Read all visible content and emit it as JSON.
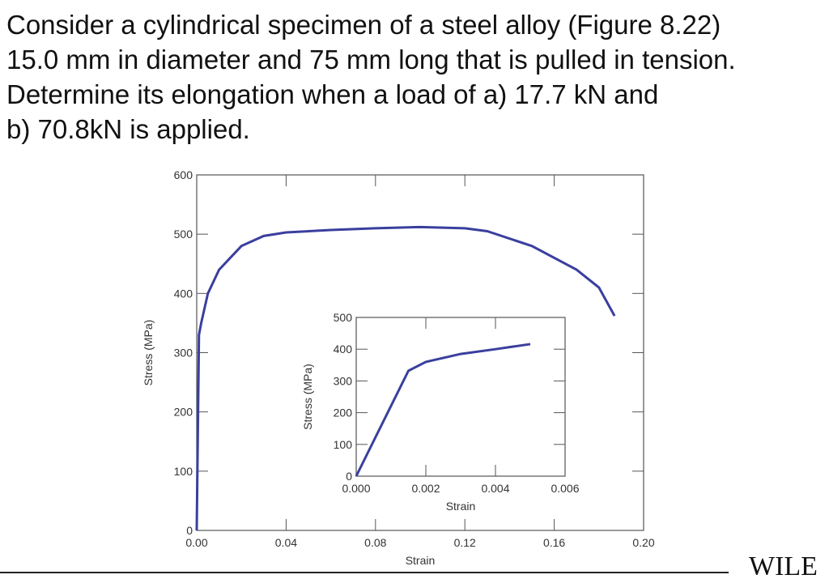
{
  "problem_lines": [
    "Consider a cylindrical specimen of a steel alloy (Figure 8.22)",
    "15.0 mm in diameter and 75 mm long that is pulled in tension.",
    "Determine its elongation when a load of a) 17.7 kN and",
    "b) 70.8kN is applied."
  ],
  "logo": "WILE",
  "chart_data": [
    {
      "type": "line",
      "xlabel": "Strain",
      "ylabel": "Stress (MPa)",
      "color": "#3a3f9e",
      "grid": false,
      "x": [
        0,
        0.001,
        0.002,
        0.005,
        0.01,
        0.02,
        0.03,
        0.04,
        0.06,
        0.08,
        0.1,
        0.12,
        0.13,
        0.15,
        0.17,
        0.18,
        0.187
      ],
      "values": [
        0,
        330,
        350,
        400,
        440,
        480,
        497,
        503,
        507,
        510,
        512,
        510,
        505,
        480,
        440,
        410,
        362
      ],
      "xlim": [
        0,
        0.2
      ],
      "ylim": [
        0,
        600
      ],
      "xticks": [
        {
          "value": 0,
          "label": "0.00"
        },
        0.04,
        0.08,
        0.12,
        0.16,
        {
          "value": 0.2,
          "label": "0.20"
        }
      ],
      "yticks": [
        0,
        100,
        200,
        300,
        400,
        500,
        600
      ]
    },
    {
      "type": "line",
      "xlabel": "Strain",
      "ylabel": "Stress (MPa)",
      "color": "#3a3f9e",
      "grid": false,
      "x": [
        0,
        0.0015,
        0.002,
        0.003,
        0.004,
        0.005
      ],
      "values": [
        0,
        332,
        360,
        385,
        400,
        416
      ],
      "xlim": [
        0,
        0.006
      ],
      "ylim": [
        0,
        500
      ],
      "xticks": [
        {
          "value": 0,
          "label": "0.000"
        },
        0.002,
        0.004,
        0.006
      ],
      "yticks": [
        0,
        100,
        200,
        300,
        400,
        500
      ]
    }
  ]
}
